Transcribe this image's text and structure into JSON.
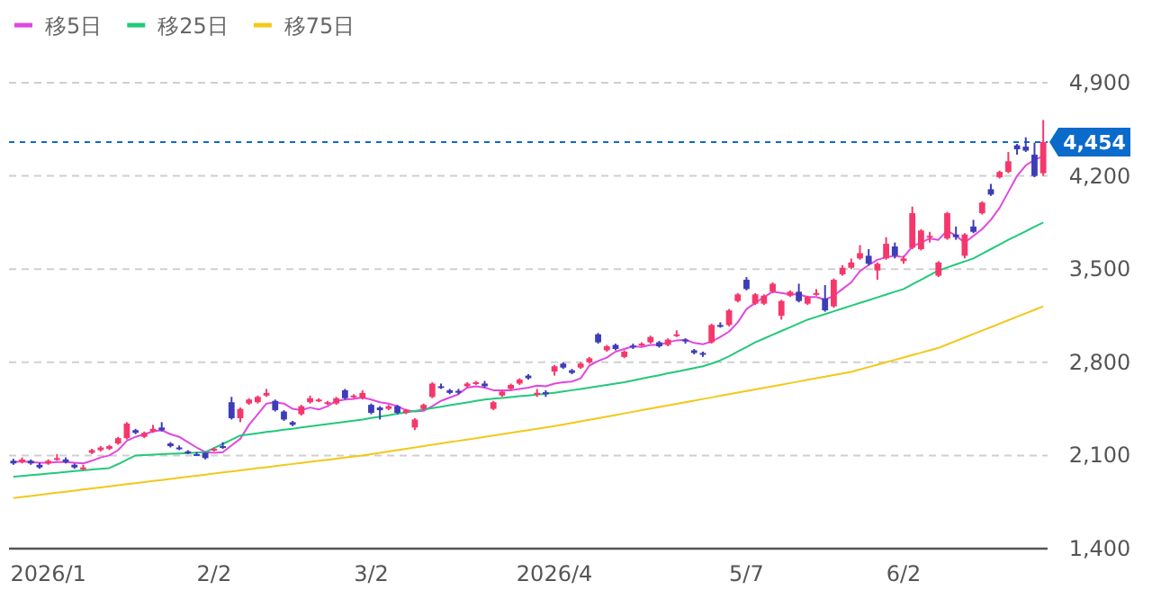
{
  "chart_data": {
    "type": "candlestick",
    "legend": "top left",
    "grid": "y",
    "ylim": [
      1400,
      4900
    ],
    "yticks": [
      {
        "value": 1400,
        "label": "1,400"
      },
      {
        "value": 2100,
        "label": "2,100"
      },
      {
        "value": 2800,
        "label": "2,800"
      },
      {
        "value": 3500,
        "label": "3,500"
      },
      {
        "value": 4200,
        "label": "4,200"
      },
      {
        "value": 4900,
        "label": "4,900"
      }
    ],
    "ref_lines": [
      {
        "axis": "y",
        "value": 4454,
        "label": "4,454",
        "color": "#0b6bcb",
        "line_style": "dashed"
      }
    ],
    "categories": [
      null,
      null,
      null,
      null,
      "2026/1",
      null,
      null,
      null,
      null,
      null,
      null,
      null,
      null,
      null,
      null,
      null,
      null,
      null,
      null,
      null,
      null,
      null,
      null,
      "2/2",
      null,
      null,
      null,
      null,
      null,
      null,
      null,
      null,
      null,
      null,
      null,
      null,
      null,
      null,
      null,
      null,
      null,
      "3/2",
      null,
      null,
      null,
      null,
      null,
      null,
      null,
      null,
      null,
      null,
      null,
      null,
      null,
      null,
      null,
      null,
      null,
      null,
      null,
      null,
      "2026/4",
      null,
      null,
      null,
      null,
      null,
      null,
      null,
      null,
      null,
      null,
      null,
      null,
      null,
      null,
      null,
      null,
      null,
      null,
      null,
      null,
      null,
      "5/7",
      null,
      null,
      null,
      null,
      null,
      null,
      null,
      null,
      null,
      null,
      null,
      null,
      null,
      null,
      null,
      null,
      null,
      "6/2",
      null,
      null,
      null,
      null,
      null,
      null,
      null,
      null,
      null,
      null,
      null,
      null,
      null,
      null,
      null,
      null
    ],
    "ohlc": [
      [
        2060,
        2075,
        2030,
        2040
      ],
      [
        2050,
        2085,
        2040,
        2070
      ],
      [
        2060,
        2070,
        2030,
        2040
      ],
      [
        2030,
        2045,
        2000,
        2010
      ],
      [
        2040,
        2070,
        2030,
        2060
      ],
      [
        2070,
        2110,
        2060,
        2080
      ],
      [
        2070,
        2085,
        2040,
        2050
      ],
      [
        2030,
        2040,
        2000,
        2010
      ],
      [
        2000,
        2030,
        1990,
        2010
      ],
      [
        2120,
        2150,
        2110,
        2140
      ],
      [
        2140,
        2170,
        2130,
        2160
      ],
      [
        2150,
        2180,
        2140,
        2170
      ],
      [
        2190,
        2240,
        2180,
        2230
      ],
      [
        2230,
        2350,
        2220,
        2340
      ],
      [
        2290,
        2300,
        2260,
        2270
      ],
      [
        2240,
        2280,
        2230,
        2270
      ],
      [
        2280,
        2330,
        2270,
        2300
      ],
      [
        2310,
        2350,
        2280,
        2290
      ],
      [
        2190,
        2200,
        2160,
        2170
      ],
      [
        2160,
        2175,
        2140,
        2150
      ],
      [
        2130,
        2140,
        2110,
        2120
      ],
      [
        2110,
        2125,
        2095,
        2100
      ],
      [
        2120,
        2125,
        2070,
        2080
      ],
      [
        2140,
        2160,
        2130,
        2150
      ],
      [
        2170,
        2200,
        2150,
        2160
      ],
      [
        2500,
        2540,
        2370,
        2380
      ],
      [
        2380,
        2460,
        2350,
        2450
      ],
      [
        2490,
        2530,
        2480,
        2520
      ],
      [
        2500,
        2550,
        2490,
        2540
      ],
      [
        2550,
        2600,
        2540,
        2570
      ],
      [
        2510,
        2520,
        2430,
        2440
      ],
      [
        2430,
        2440,
        2360,
        2370
      ],
      [
        2350,
        2360,
        2320,
        2330
      ],
      [
        2410,
        2480,
        2400,
        2470
      ],
      [
        2500,
        2550,
        2490,
        2530
      ],
      [
        2510,
        2530,
        2500,
        2520
      ],
      [
        2490,
        2510,
        2480,
        2500
      ],
      [
        2490,
        2540,
        2480,
        2530
      ],
      [
        2590,
        2600,
        2520,
        2530
      ],
      [
        2540,
        2560,
        2530,
        2550
      ],
      [
        2530,
        2590,
        2520,
        2570
      ],
      [
        2480,
        2490,
        2410,
        2420
      ],
      [
        2460,
        2470,
        2370,
        2440
      ],
      [
        2450,
        2480,
        2440,
        2470
      ],
      [
        2470,
        2480,
        2410,
        2420
      ],
      [
        2420,
        2450,
        2410,
        2440
      ],
      [
        2310,
        2380,
        2290,
        2370
      ],
      [
        2450,
        2490,
        2440,
        2480
      ],
      [
        2540,
        2650,
        2530,
        2640
      ],
      [
        2620,
        2640,
        2600,
        2610
      ],
      [
        2590,
        2600,
        2560,
        2570
      ],
      [
        2585,
        2600,
        2560,
        2580
      ],
      [
        2620,
        2650,
        2610,
        2640
      ],
      [
        2640,
        2660,
        2630,
        2650
      ],
      [
        2640,
        2660,
        2610,
        2620
      ],
      [
        2450,
        2510,
        2440,
        2500
      ],
      [
        2550,
        2590,
        2540,
        2580
      ],
      [
        2600,
        2640,
        2590,
        2630
      ],
      [
        2640,
        2680,
        2630,
        2670
      ],
      [
        2700,
        2710,
        2670,
        2680
      ],
      [
        2560,
        2600,
        2540,
        2570
      ],
      [
        2575,
        2590,
        2540,
        2560
      ],
      [
        2730,
        2780,
        2700,
        2770
      ],
      [
        2790,
        2800,
        2750,
        2760
      ],
      [
        2740,
        2750,
        2710,
        2720
      ],
      [
        2760,
        2800,
        2750,
        2790
      ],
      [
        2800,
        2840,
        2790,
        2830
      ],
      [
        3010,
        3020,
        2940,
        2950
      ],
      [
        2890,
        2930,
        2880,
        2920
      ],
      [
        2930,
        2940,
        2890,
        2900
      ],
      [
        2840,
        2890,
        2830,
        2880
      ],
      [
        2925,
        2940,
        2900,
        2920
      ],
      [
        2930,
        2950,
        2920,
        2940
      ],
      [
        2950,
        3000,
        2940,
        2990
      ],
      [
        2950,
        2960,
        2910,
        2920
      ],
      [
        2930,
        2980,
        2920,
        2970
      ],
      [
        3000,
        3040,
        2990,
        3010
      ],
      [
        2970,
        2980,
        2940,
        2960
      ],
      [
        2890,
        2900,
        2860,
        2870
      ],
      [
        2870,
        2880,
        2840,
        2860
      ],
      [
        2950,
        3090,
        2940,
        3080
      ],
      [
        3080,
        3100,
        3060,
        3070
      ],
      [
        3080,
        3200,
        3070,
        3190
      ],
      [
        3260,
        3320,
        3250,
        3310
      ],
      [
        3420,
        3440,
        3340,
        3350
      ],
      [
        3240,
        3320,
        3230,
        3310
      ],
      [
        3240,
        3310,
        3230,
        3300
      ],
      [
        3330,
        3400,
        3320,
        3390
      ],
      [
        3150,
        3270,
        3120,
        3260
      ],
      [
        3300,
        3340,
        3290,
        3330
      ],
      [
        3330,
        3390,
        3250,
        3260
      ],
      [
        3240,
        3300,
        3230,
        3290
      ],
      [
        3310,
        3350,
        3300,
        3320
      ],
      [
        3280,
        3380,
        3180,
        3190
      ],
      [
        3220,
        3430,
        3210,
        3420
      ],
      [
        3460,
        3530,
        3450,
        3510
      ],
      [
        3510,
        3580,
        3500,
        3550
      ],
      [
        3580,
        3680,
        3570,
        3620
      ],
      [
        3600,
        3650,
        3530,
        3540
      ],
      [
        3490,
        3550,
        3420,
        3540
      ],
      [
        3580,
        3740,
        3570,
        3690
      ],
      [
        3670,
        3700,
        3580,
        3600
      ],
      [
        3560,
        3600,
        3540,
        3580
      ],
      [
        3660,
        3970,
        3650,
        3920
      ],
      [
        3650,
        3800,
        3640,
        3790
      ],
      [
        3740,
        3780,
        3700,
        3750
      ],
      [
        3450,
        3560,
        3440,
        3550
      ],
      [
        3730,
        3930,
        3720,
        3920
      ],
      [
        3760,
        3820,
        3720,
        3740
      ],
      [
        3600,
        3770,
        3580,
        3760
      ],
      [
        3820,
        3870,
        3770,
        3780
      ],
      [
        3920,
        4010,
        3910,
        4000
      ],
      [
        4100,
        4140,
        4050,
        4060
      ],
      [
        4190,
        4240,
        4180,
        4230
      ],
      [
        4230,
        4380,
        4220,
        4310
      ],
      [
        4430,
        4440,
        4360,
        4400
      ],
      [
        4420,
        4490,
        4380,
        4390
      ],
      [
        4360,
        4450,
        4190,
        4200
      ],
      [
        4220,
        4620,
        4200,
        4454
      ]
    ],
    "colors": [
      "#3d3db8",
      "#f5386c",
      "#3d3db8",
      "#3d3db8",
      "#f5386c",
      "#f5386c",
      "#3d3db8",
      "#3d3db8",
      "#f5386c",
      "#f5386c",
      "#f5386c",
      "#f5386c",
      "#f5386c",
      "#f5386c",
      "#3d3db8",
      "#f5386c",
      "#f5386c",
      "#3d3db8",
      "#3d3db8",
      "#3d3db8",
      "#3d3db8",
      "#3d3db8",
      "#3d3db8",
      "#f5386c",
      "#3d3db8",
      "#3d3db8",
      "#f5386c",
      "#f5386c",
      "#f5386c",
      "#f5386c",
      "#3d3db8",
      "#3d3db8",
      "#3d3db8",
      "#f5386c",
      "#f5386c",
      "#f5386c",
      "#f5386c",
      "#f5386c",
      "#3d3db8",
      "#f5386c",
      "#f5386c",
      "#3d3db8",
      "#3d3db8",
      "#f5386c",
      "#3d3db8",
      "#f5386c",
      "#f5386c",
      "#f5386c",
      "#f5386c",
      "#3d3db8",
      "#3d3db8",
      "#3d3db8",
      "#f5386c",
      "#f5386c",
      "#3d3db8",
      "#f5386c",
      "#f5386c",
      "#f5386c",
      "#f5386c",
      "#3d3db8",
      "#f5386c",
      "#3d3db8",
      "#f5386c",
      "#3d3db8",
      "#3d3db8",
      "#f5386c",
      "#f5386c",
      "#3d3db8",
      "#f5386c",
      "#3d3db8",
      "#f5386c",
      "#3d3db8",
      "#f5386c",
      "#f5386c",
      "#3d3db8",
      "#f5386c",
      "#f5386c",
      "#3d3db8",
      "#3d3db8",
      "#3d3db8",
      "#f5386c",
      "#3d3db8",
      "#f5386c",
      "#f5386c",
      "#3d3db8",
      "#f5386c",
      "#f5386c",
      "#f5386c",
      "#f5386c",
      "#f5386c",
      "#3d3db8",
      "#f5386c",
      "#f5386c",
      "#3d3db8",
      "#f5386c",
      "#f5386c",
      "#f5386c",
      "#f5386c",
      "#3d3db8",
      "#f5386c",
      "#f5386c",
      "#3d3db8",
      "#f5386c",
      "#f5386c",
      "#f5386c",
      "#f5386c",
      "#f5386c",
      "#f5386c",
      "#3d3db8",
      "#f5386c",
      "#3d3db8",
      "#f5386c",
      "#3d3db8",
      "#f5386c",
      "#f5386c",
      "#3d3db8",
      "#3d3db8",
      "#3d3db8",
      "#f5386c"
    ],
    "series": [
      {
        "name": "移5日",
        "type": "line",
        "color": "#e048e0",
        "values": [
          2050,
          2055,
          2050,
          2045,
          2045,
          2050,
          2050,
          2045,
          2040,
          2060,
          2085,
          2100,
          2140,
          2210,
          2240,
          2260,
          2280,
          2290,
          2260,
          2240,
          2200,
          2160,
          2125,
          2120,
          2125,
          2175,
          2225,
          2330,
          2410,
          2490,
          2500,
          2490,
          2450,
          2440,
          2460,
          2445,
          2470,
          2510,
          2520,
          2525,
          2535,
          2520,
          2500,
          2490,
          2470,
          2440,
          2430,
          2435,
          2470,
          2510,
          2535,
          2560,
          2610,
          2620,
          2610,
          2590,
          2590,
          2590,
          2600,
          2610,
          2625,
          2620,
          2640,
          2650,
          2655,
          2680,
          2775,
          2810,
          2835,
          2880,
          2900,
          2920,
          2915,
          2930,
          2930,
          2950,
          2965,
          2970,
          2945,
          2935,
          2955,
          2990,
          3030,
          3100,
          3200,
          3245,
          3290,
          3330,
          3320,
          3310,
          3310,
          3290,
          3290,
          3270,
          3300,
          3350,
          3400,
          3485,
          3530,
          3570,
          3590,
          3600,
          3590,
          3670,
          3700,
          3730,
          3720,
          3790,
          3750,
          3700,
          3750,
          3800,
          3870,
          3960,
          4080,
          4200,
          4280,
          4320,
          4350
        ]
      },
      {
        "name": "移25日",
        "type": "line",
        "color": "#22c97a",
        "values": [
          1940,
          1946,
          1952,
          1958,
          1964,
          1970,
          1976,
          1982,
          1988,
          1994,
          2000,
          2005,
          2035,
          2068,
          2100,
          2103,
          2106,
          2109,
          2112,
          2115,
          2118,
          2121,
          2125,
          2156,
          2187,
          2218,
          2250,
          2258,
          2267,
          2276,
          2284,
          2293,
          2301,
          2310,
          2319,
          2327,
          2336,
          2344,
          2353,
          2361,
          2370,
          2381,
          2391,
          2402,
          2413,
          2424,
          2434,
          2445,
          2456,
          2466,
          2477,
          2488,
          2498,
          2509,
          2520,
          2526,
          2532,
          2539,
          2545,
          2551,
          2557,
          2564,
          2570,
          2580,
          2590,
          2600,
          2610,
          2620,
          2630,
          2640,
          2650,
          2663,
          2677,
          2690,
          2703,
          2717,
          2730,
          2743,
          2757,
          2770,
          2790,
          2815,
          2845,
          2880,
          2915,
          2950,
          2978,
          3007,
          3035,
          3063,
          3092,
          3120,
          3141,
          3162,
          3183,
          3204,
          3225,
          3246,
          3267,
          3288,
          3309,
          3330,
          3350,
          3385,
          3420,
          3455,
          3490,
          3512,
          3535,
          3558,
          3580,
          3615,
          3650,
          3685,
          3720,
          3752,
          3785,
          3818,
          3850
        ]
      },
      {
        "name": "移75日",
        "type": "line",
        "color": "#f2c81a",
        "values": [
          1780,
          1788,
          1796,
          1804,
          1812,
          1820,
          1828,
          1836,
          1844,
          1852,
          1860,
          1868,
          1876,
          1884,
          1892,
          1900,
          1908,
          1916,
          1924,
          1932,
          1940,
          1948,
          1956,
          1964,
          1972,
          1980,
          1988,
          1996,
          2004,
          2012,
          2020,
          2028,
          2036,
          2044,
          2052,
          2060,
          2068,
          2076,
          2084,
          2092,
          2100,
          2110,
          2120,
          2130,
          2140,
          2150,
          2160,
          2170,
          2180,
          2190,
          2200,
          2210,
          2220,
          2230,
          2240,
          2250,
          2260,
          2270,
          2280,
          2290,
          2300,
          2310,
          2320,
          2332,
          2344,
          2356,
          2368,
          2380,
          2392,
          2404,
          2416,
          2428,
          2440,
          2452,
          2464,
          2476,
          2488,
          2500,
          2512,
          2524,
          2536,
          2548,
          2560,
          2572,
          2584,
          2596,
          2608,
          2620,
          2632,
          2644,
          2656,
          2668,
          2680,
          2692,
          2704,
          2716,
          2728,
          2746,
          2764,
          2782,
          2800,
          2818,
          2836,
          2854,
          2872,
          2890,
          2908,
          2934,
          2960,
          2986,
          3012,
          3038,
          3064,
          3090,
          3116,
          3142,
          3168,
          3194,
          3220
        ]
      }
    ]
  }
}
